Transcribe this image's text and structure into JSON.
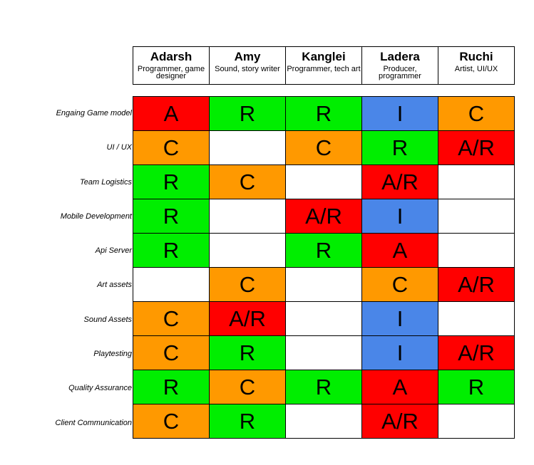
{
  "colors": {
    "A": "#ff0000",
    "A/R": "#ff0000",
    "R": "#00ee00",
    "I": "#4a86e8",
    "C": "#ff9900",
    "": "#ffffff"
  },
  "people": [
    {
      "name": "Adarsh",
      "role": "Programmer, game designer"
    },
    {
      "name": "Amy",
      "role": "Sound, story writer"
    },
    {
      "name": "Kanglei",
      "role": "Programmer, tech art"
    },
    {
      "name": "Ladera",
      "role": "Producer, programmer"
    },
    {
      "name": "Ruchi",
      "role": "Artist, UI/UX"
    }
  ],
  "tasks": [
    {
      "label": "Engaing Game model",
      "cells": [
        "A",
        "R",
        "R",
        "I",
        "C"
      ]
    },
    {
      "label": "UI / UX",
      "cells": [
        "C",
        "",
        "C",
        "R",
        "A/R"
      ]
    },
    {
      "label": "Team Logistics",
      "cells": [
        "R",
        "C",
        "",
        "A/R",
        ""
      ]
    },
    {
      "label": "Mobile Development",
      "cells": [
        "R",
        "",
        "A/R",
        "I",
        ""
      ]
    },
    {
      "label": "Api Server",
      "cells": [
        "R",
        "",
        "R",
        "A",
        ""
      ]
    },
    {
      "label": "Art assets",
      "cells": [
        "",
        "C",
        "",
        "C",
        "A/R"
      ]
    },
    {
      "label": "Sound Assets",
      "cells": [
        "C",
        "A/R",
        "",
        "I",
        ""
      ]
    },
    {
      "label": "Playtesting",
      "cells": [
        "C",
        "R",
        "",
        "I",
        "A/R"
      ]
    },
    {
      "label": "Quality Assurance",
      "cells": [
        "R",
        "C",
        "R",
        "A",
        "R"
      ]
    },
    {
      "label": "Client Communication",
      "cells": [
        "C",
        "R",
        "",
        "A/R",
        ""
      ]
    }
  ]
}
